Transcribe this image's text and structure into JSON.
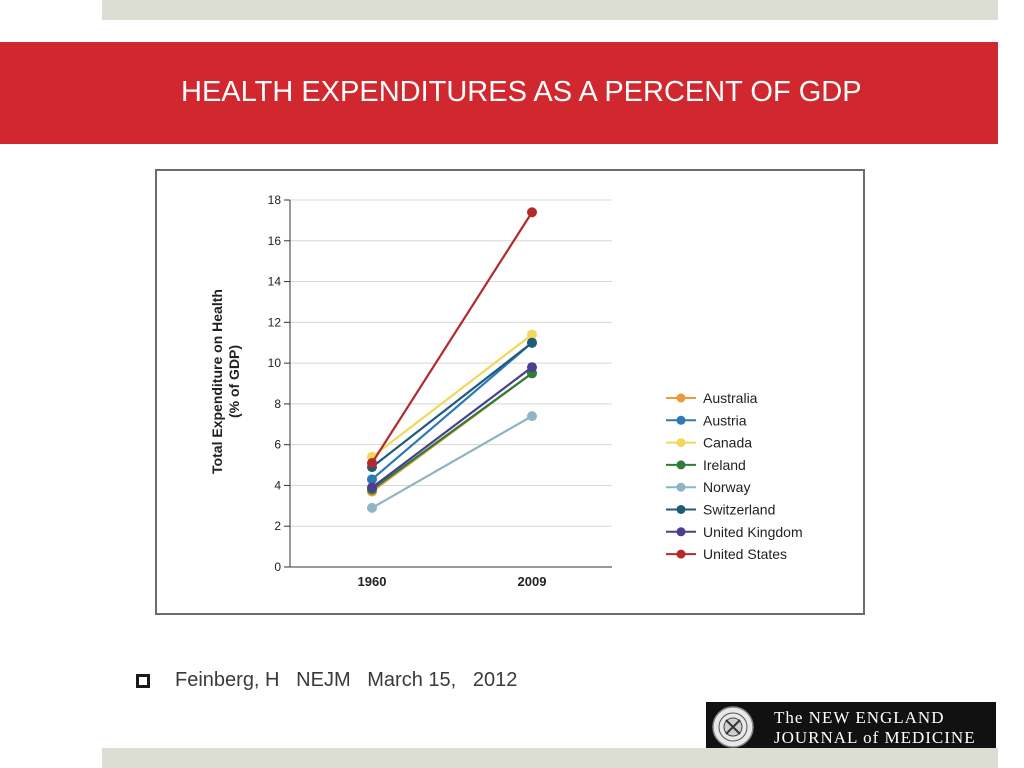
{
  "slide": {
    "title": "HEALTH EXPENDITURES AS A PERCENT OF GDP",
    "title_bar_color": "#d1272f",
    "citation": "Feinberg, H   NEJM   March 15,   2012",
    "logo": {
      "line1": "The NEW ENGLAND",
      "line2": "JOURNAL of MEDICINE"
    }
  },
  "chart_data": {
    "type": "line",
    "title": "",
    "xlabel": "",
    "ylabel": "Total Expenditure on Health (% of GDP)",
    "ylabel_lines": [
      "Total Expenditure on Health",
      "(% of GDP)"
    ],
    "categories": [
      "1960",
      "2009"
    ],
    "ylim": [
      0,
      18
    ],
    "yticks": [
      0,
      2,
      4,
      6,
      8,
      10,
      12,
      14,
      16,
      18
    ],
    "grid": true,
    "legend_position": "right",
    "series": [
      {
        "name": "Australia",
        "values": [
          3.7,
          9.5
        ],
        "color": "#e89a3c"
      },
      {
        "name": "Austria",
        "values": [
          4.3,
          11.0
        ],
        "color": "#2e78b7"
      },
      {
        "name": "Canada",
        "values": [
          5.4,
          11.4
        ],
        "color": "#f2d85a"
      },
      {
        "name": "Ireland",
        "values": [
          3.8,
          9.5
        ],
        "color": "#2e7d3a"
      },
      {
        "name": "Norway",
        "values": [
          2.9,
          7.4
        ],
        "color": "#8fb4c4"
      },
      {
        "name": "Switzerland",
        "values": [
          4.9,
          11.0
        ],
        "color": "#1e5a7a"
      },
      {
        "name": "United Kingdom",
        "values": [
          3.9,
          9.8
        ],
        "color": "#4a3f8e"
      },
      {
        "name": "United States",
        "values": [
          5.1,
          17.4
        ],
        "color": "#b42a2a"
      }
    ]
  }
}
